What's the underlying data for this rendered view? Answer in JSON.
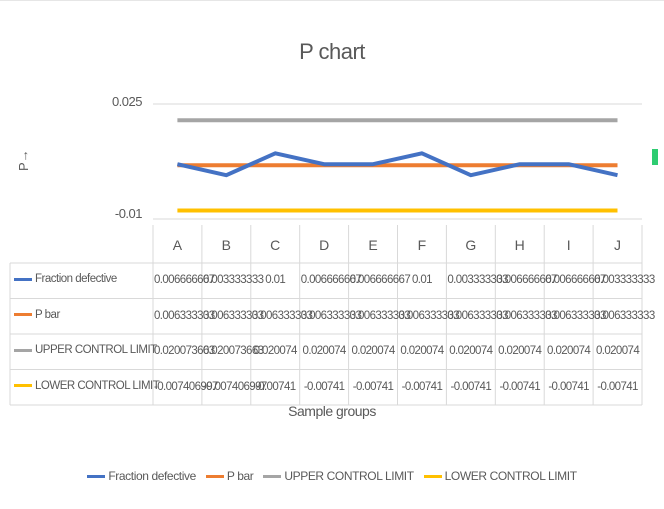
{
  "chart_data": {
    "type": "line",
    "title": "P chart",
    "ylabel": "P→",
    "xlabel": "Sample groups",
    "ylim": [
      -0.01,
      0.025
    ],
    "yticks": [
      "0.025",
      "-0.01"
    ],
    "categories": [
      "A",
      "B",
      "C",
      "D",
      "E",
      "F",
      "G",
      "H",
      "I",
      "J"
    ],
    "legend_position": "bottom",
    "data_table": true,
    "series": [
      {
        "name": "Fraction defective",
        "color": "#4472c4",
        "values": [
          0.006666667,
          0.003333333,
          0.01,
          0.006666667,
          0.006666667,
          0.01,
          0.003333333,
          0.006666667,
          0.006666667,
          0.003333333
        ],
        "labels": [
          "0.006666667",
          "0.003333333",
          "0.01",
          "0.006666667",
          "0.006666667",
          "0.01",
          "0.003333333",
          "0.006666667",
          "0.006666667",
          "0.003333333"
        ]
      },
      {
        "name": "P bar",
        "color": "#ed7d31",
        "values": [
          0.006333333,
          0.006333333,
          0.006333333,
          0.006333333,
          0.006333333,
          0.006333333,
          0.006333333,
          0.006333333,
          0.006333333,
          0.006333333
        ],
        "labels": [
          "0.006333333",
          "0.006333333",
          "0.006333333",
          "0.006333333",
          "0.006333333",
          "0.006333333",
          "0.006333333",
          "0.006333333",
          "0.006333333",
          "0.006333333"
        ]
      },
      {
        "name": "UPPER CONTROL  LIMIT",
        "color": "#a5a5a5",
        "values": [
          0.020073663,
          0.020073663,
          0.020074,
          0.020074,
          0.020074,
          0.020074,
          0.020074,
          0.020074,
          0.020074,
          0.020074
        ],
        "labels": [
          "0.020073663",
          "0.020073663",
          "0.020074",
          "0.020074",
          "0.020074",
          "0.020074",
          "0.020074",
          "0.020074",
          "0.020074",
          "0.020074"
        ]
      },
      {
        "name": "LOWER CONTROL LIMIT",
        "color": "#ffc000",
        "values": [
          -0.007406997,
          -0.007406997,
          -0.00741,
          -0.00741,
          -0.00741,
          -0.00741,
          -0.00741,
          -0.00741,
          -0.00741,
          -0.00741
        ],
        "labels": [
          "-0.007406997",
          "-0.007406997",
          "-0.00741",
          "-0.00741",
          "-0.00741",
          "-0.00741",
          "-0.00741",
          "-0.00741",
          "-0.00741",
          "-0.00741"
        ]
      }
    ]
  }
}
